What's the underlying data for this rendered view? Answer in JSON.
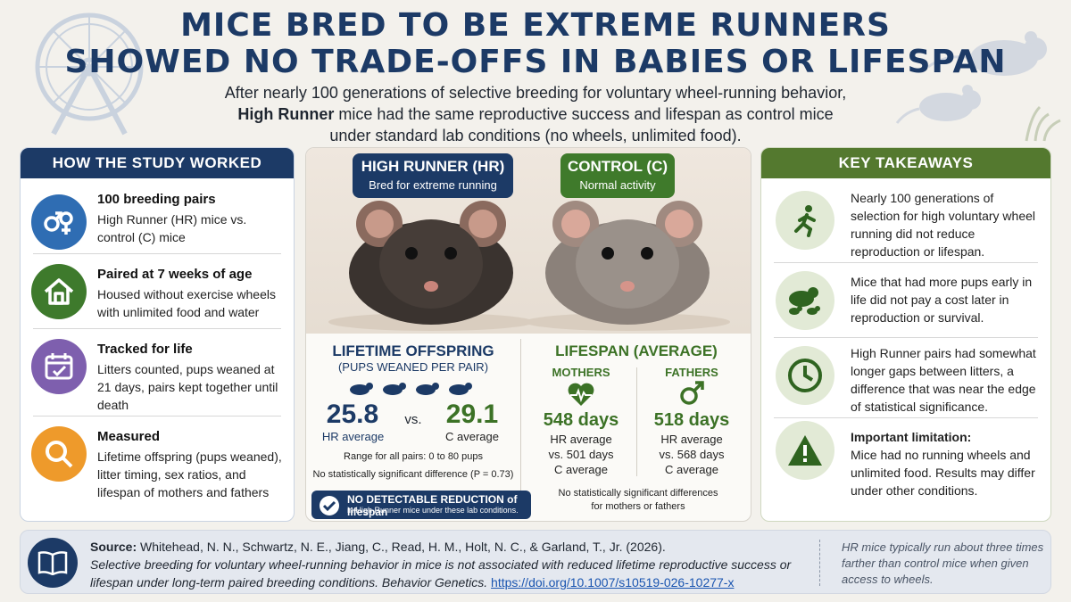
{
  "title": {
    "line1": "MICE BRED TO BE EXTREME RUNNERS",
    "line2": "SHOWED NO TRADE-OFFS IN BABIES OR LIFESPAN"
  },
  "subtitle": {
    "line1": "After nearly 100 generations of selective breeding for voluntary wheel-running behavior,",
    "line2_bold": "High Runner",
    "line2_rest": " mice had the same reproductive success and lifespan as control mice",
    "line3": "under standard lab conditions (no wheels, unlimited food)."
  },
  "study": {
    "heading": "HOW THE STUDY WORKED",
    "items": [
      {
        "title": "100 breeding pairs",
        "text": "High Runner (HR) mice vs. control (C) mice",
        "icon": "male-female-icon",
        "color": "#2f6db3"
      },
      {
        "title": "Paired at 7 weeks of age",
        "text": "Housed without exercise wheels with unlimited food and water",
        "icon": "house-icon",
        "color": "#3e7a2c"
      },
      {
        "title": "Tracked for life",
        "text": "Litters counted, pups weaned at 21 days, pairs kept together until death",
        "icon": "calendar-icon",
        "color": "#7e5fae"
      },
      {
        "title": "Measured",
        "text": "Lifetime offspring (pups weaned), litter timing, sex ratios, and lifespan of mothers and fathers",
        "icon": "magnifier-icon",
        "color": "#ee9a2b"
      }
    ]
  },
  "comparison": {
    "hr_badge": {
      "title": "HIGH RUNNER (HR)",
      "sub": "Bred for extreme running"
    },
    "c_badge": {
      "title": "CONTROL (C)",
      "sub": "Normal activity"
    },
    "offspring": {
      "heading": "LIFETIME OFFSPRING",
      "sub": "(PUPS WEANED PER PAIR)",
      "hr_value": "25.8",
      "hr_label": "HR average",
      "vs": "vs.",
      "c_value": "29.1",
      "c_label": "C average",
      "range": "Range for all pairs: 0 to 80 pups",
      "stat": "No statistically significant difference (P = 0.73)"
    },
    "lifespan": {
      "heading": "LIFESPAN (AVERAGE)",
      "mothers_label": "MOTHERS",
      "mothers_value": "548 days",
      "mothers_line1": "HR average",
      "mothers_line2": "vs. 501 days",
      "mothers_line3": "C average",
      "fathers_label": "FATHERS",
      "fathers_value": "518 days",
      "fathers_line1": "HR average",
      "fathers_line2": "vs. 568 days",
      "fathers_line3": "C average",
      "note_line1": "No statistically significant differences",
      "note_line2": "for mothers or fathers"
    },
    "banner": {
      "line1": "NO DETECTABLE REDUCTION of lifespan",
      "line2": "in High Runner mice under these lab conditions."
    }
  },
  "takeaways": {
    "heading": "KEY TAKEAWAYS",
    "items": [
      {
        "text": "Nearly 100 generations of selection for high voluntary wheel running did not reduce reproduction or lifespan.",
        "icon": "runner-icon"
      },
      {
        "text": "Mice that had more pups early in life did not pay a cost later in reproduction or survival.",
        "icon": "mouse-family-icon"
      },
      {
        "text": "High Runner pairs had somewhat longer gaps between litters, a difference that was near the edge of statistical significance.",
        "icon": "clock-icon"
      },
      {
        "bold": "Important limitation:",
        "text": "Mice had no running wheels and unlimited food. Results may differ under other conditions.",
        "icon": "warning-icon"
      }
    ]
  },
  "footer": {
    "source_label": "Source:",
    "authors": " Whitehead, N. N., Schwartz, N. E., Jiang, C., Read, H. M., Holt, N. C., & Garland, T., Jr. (2026).",
    "article": "Selective breeding for voluntary wheel-running behavior in mice is not associated with reduced lifetime reproductive success or lifespan under long-term paired breeding conditions.",
    "journal": " Behavior Genetics.",
    "link": "https://doi.org/10.1007/s10519-026-10277-x",
    "note": "HR mice typically run about three times farther than control mice when given access to wheels."
  },
  "colors": {
    "navy": "#1c3a66",
    "green": "#54792f",
    "accent_green": "#3c7226"
  }
}
